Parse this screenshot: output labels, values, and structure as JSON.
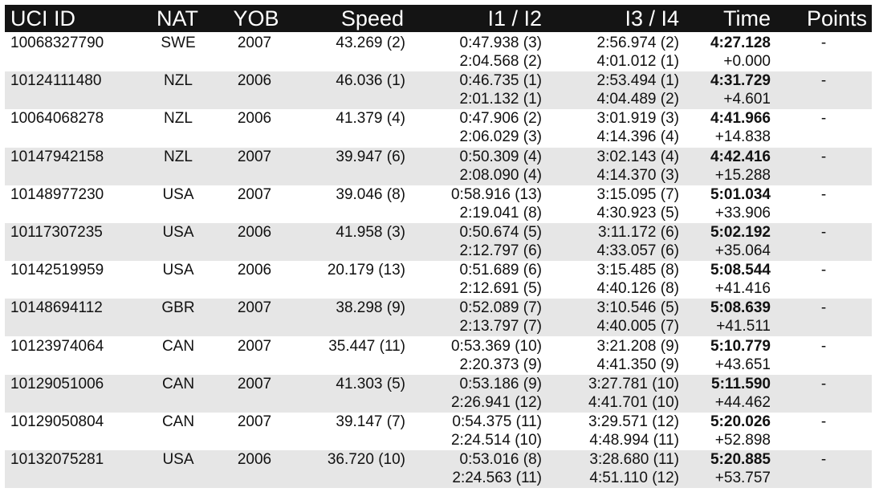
{
  "headers": {
    "uci_id": "UCI ID",
    "nat": "NAT",
    "yob": "YOB",
    "speed": "Speed",
    "i1i2": "I1 / I2",
    "i3i4": "I3 / I4",
    "time": "Time",
    "points": "Points"
  },
  "rows": [
    {
      "uci_id": "10068327790",
      "nat": "SWE",
      "yob": "2007",
      "speed": "43.269 (2)",
      "i1": "0:47.938 (3)",
      "i2": "2:04.568 (2)",
      "i3": "2:56.974 (2)",
      "i4": "4:01.012 (1)",
      "time": "4:27.128",
      "gap": "+0.000",
      "points": "-"
    },
    {
      "uci_id": "10124111480",
      "nat": "NZL",
      "yob": "2006",
      "speed": "46.036 (1)",
      "i1": "0:46.735 (1)",
      "i2": "2:01.132 (1)",
      "i3": "2:53.494 (1)",
      "i4": "4:04.489 (2)",
      "time": "4:31.729",
      "gap": "+4.601",
      "points": "-"
    },
    {
      "uci_id": "10064068278",
      "nat": "NZL",
      "yob": "2006",
      "speed": "41.379 (4)",
      "i1": "0:47.906 (2)",
      "i2": "2:06.029 (3)",
      "i3": "3:01.919 (3)",
      "i4": "4:14.396 (4)",
      "time": "4:41.966",
      "gap": "+14.838",
      "points": "-"
    },
    {
      "uci_id": "10147942158",
      "nat": "NZL",
      "yob": "2007",
      "speed": "39.947 (6)",
      "i1": "0:50.309 (4)",
      "i2": "2:08.090 (4)",
      "i3": "3:02.143 (4)",
      "i4": "4:14.370 (3)",
      "time": "4:42.416",
      "gap": "+15.288",
      "points": "-"
    },
    {
      "uci_id": "10148977230",
      "nat": "USA",
      "yob": "2007",
      "speed": "39.046 (8)",
      "i1": "0:58.916 (13)",
      "i2": "2:19.041 (8)",
      "i3": "3:15.095 (7)",
      "i4": "4:30.923 (5)",
      "time": "5:01.034",
      "gap": "+33.906",
      "points": "-"
    },
    {
      "uci_id": "10117307235",
      "nat": "USA",
      "yob": "2006",
      "speed": "41.958 (3)",
      "i1": "0:50.674 (5)",
      "i2": "2:12.797 (6)",
      "i3": "3:11.172 (6)",
      "i4": "4:33.057 (6)",
      "time": "5:02.192",
      "gap": "+35.064",
      "points": "-"
    },
    {
      "uci_id": "10142519959",
      "nat": "USA",
      "yob": "2006",
      "speed": "20.179 (13)",
      "i1": "0:51.689 (6)",
      "i2": "2:12.691 (5)",
      "i3": "3:15.485 (8)",
      "i4": "4:40.126 (8)",
      "time": "5:08.544",
      "gap": "+41.416",
      "points": "-"
    },
    {
      "uci_id": "10148694112",
      "nat": "GBR",
      "yob": "2007",
      "speed": "38.298 (9)",
      "i1": "0:52.089 (7)",
      "i2": "2:13.797 (7)",
      "i3": "3:10.546 (5)",
      "i4": "4:40.005 (7)",
      "time": "5:08.639",
      "gap": "+41.511",
      "points": "-"
    },
    {
      "uci_id": "10123974064",
      "nat": "CAN",
      "yob": "2007",
      "speed": "35.447 (11)",
      "i1": "0:53.369 (10)",
      "i2": "2:20.373 (9)",
      "i3": "3:21.208 (9)",
      "i4": "4:41.350 (9)",
      "time": "5:10.779",
      "gap": "+43.651",
      "points": "-"
    },
    {
      "uci_id": "10129051006",
      "nat": "CAN",
      "yob": "2007",
      "speed": "41.303 (5)",
      "i1": "0:53.186 (9)",
      "i2": "2:26.941 (12)",
      "i3": "3:27.781 (10)",
      "i4": "4:41.701 (10)",
      "time": "5:11.590",
      "gap": "+44.462",
      "points": "-"
    },
    {
      "uci_id": "10129050804",
      "nat": "CAN",
      "yob": "2007",
      "speed": "39.147 (7)",
      "i1": "0:54.375 (11)",
      "i2": "2:24.514 (10)",
      "i3": "3:29.571 (12)",
      "i4": "4:48.994 (11)",
      "time": "5:20.026",
      "gap": "+52.898",
      "points": "-"
    },
    {
      "uci_id": "10132075281",
      "nat": "USA",
      "yob": "2006",
      "speed": "36.720 (10)",
      "i1": "0:53.016 (8)",
      "i2": "2:24.563 (11)",
      "i3": "3:28.680 (11)",
      "i4": "4:51.110 (12)",
      "time": "5:20.885",
      "gap": "+53.757",
      "points": "-"
    }
  ]
}
